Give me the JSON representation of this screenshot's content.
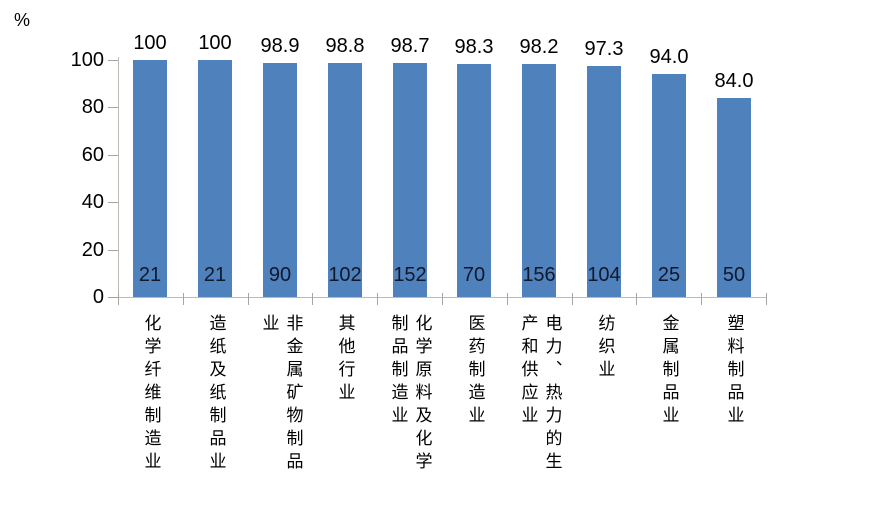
{
  "chart_data": {
    "type": "bar",
    "title": "",
    "unit_label": "%",
    "categories": [
      "化学纤维制造业",
      "造纸及纸制品业",
      "非金属矿物制品业",
      "其他行业",
      "化学原料及化学制品制造业",
      "医药制造业",
      "电力、热力的生产和供应业",
      "纺织业",
      "金属制品业",
      "塑料制品业"
    ],
    "values": [
      100,
      100,
      98.9,
      98.8,
      98.7,
      98.3,
      98.2,
      97.3,
      94.0,
      84.0
    ],
    "value_labels": [
      "100",
      "100",
      "98.9",
      "98.8",
      "98.7",
      "98.3",
      "98.2",
      "97.3",
      "94.0",
      "84.0"
    ],
    "bar_base_counts": [
      "21",
      "21",
      "90",
      "102",
      "152",
      "70",
      "156",
      "104",
      "25",
      "50"
    ],
    "xlabel": "",
    "ylabel": "%",
    "ylim": [
      0,
      100
    ],
    "yticks": [
      0,
      20,
      40,
      60,
      80,
      100
    ],
    "grid": false,
    "legend_position": "none",
    "colors": {
      "bar": "#4F81BD",
      "axis_line": "#BFB9B3",
      "tick_mark": "#ABA49E",
      "text": "#000000"
    }
  }
}
